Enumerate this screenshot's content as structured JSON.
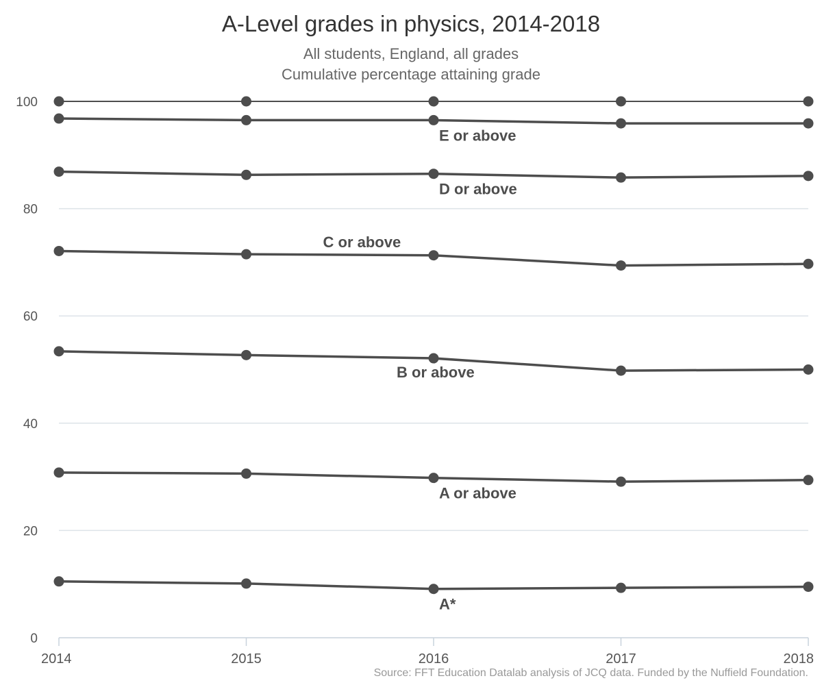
{
  "chart_data": {
    "type": "line",
    "title": "A-Level grades in physics, 2014-2018",
    "subtitle_line1": "All students, England, all grades",
    "subtitle_line2": "Cumulative percentage attaining grade",
    "source": "Source: FFT Education Datalab analysis of JCQ data. Funded by the Nuffield Foundation.",
    "xlabel": "",
    "ylabel": "",
    "x": [
      2014,
      2015,
      2016,
      2017,
      2018
    ],
    "x_labels": [
      "2014",
      "2015",
      "2016",
      "2017",
      "2018"
    ],
    "ylim": [
      0,
      100
    ],
    "yticks": [
      "0",
      "20",
      "40",
      "60",
      "80",
      "100"
    ],
    "grid": true,
    "line_color": "#4d4d4d",
    "grid_color": "#dde3e8",
    "series": [
      {
        "name": "",
        "values": [
          100,
          100,
          100,
          100,
          100
        ]
      },
      {
        "name": "E or above",
        "values": [
          96.8,
          96.5,
          96.5,
          95.9,
          95.9
        ]
      },
      {
        "name": "D or above",
        "values": [
          86.9,
          86.3,
          86.5,
          85.8,
          86.1
        ]
      },
      {
        "name": "C or above",
        "values": [
          72.1,
          71.5,
          71.3,
          69.4,
          69.7
        ]
      },
      {
        "name": "B or above",
        "values": [
          53.4,
          52.7,
          52.1,
          49.8,
          50.0
        ]
      },
      {
        "name": "A or above",
        "values": [
          30.8,
          30.6,
          29.8,
          29.1,
          29.4
        ]
      },
      {
        "name": "A*",
        "values": [
          10.5,
          10.1,
          9.1,
          9.3,
          9.5
        ]
      }
    ]
  }
}
